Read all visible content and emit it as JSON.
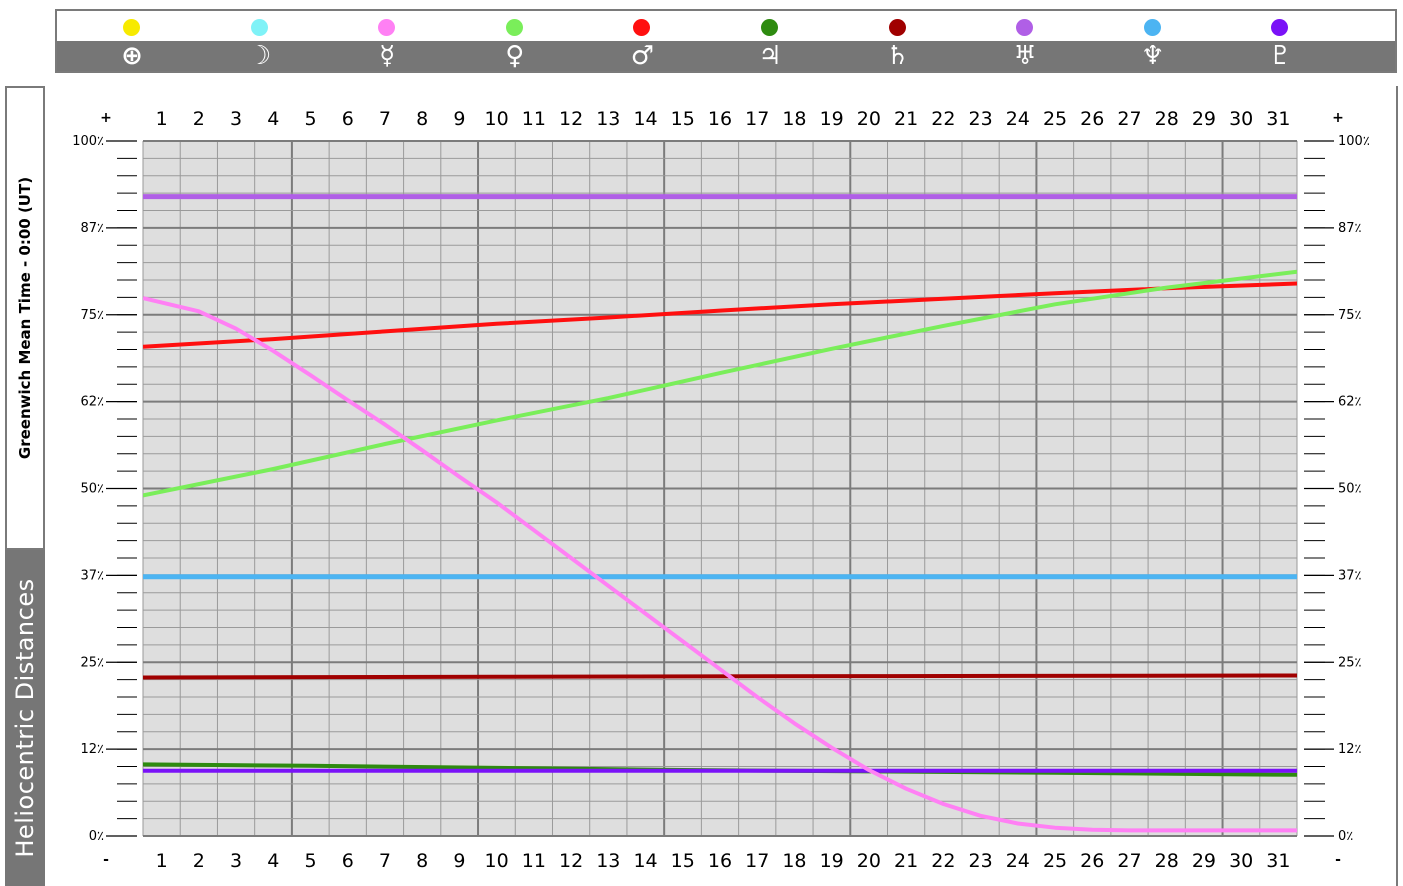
{
  "legend": [
    {
      "symbol": "⊕",
      "color": "#f7ea00",
      "name": "earth-icon"
    },
    {
      "symbol": "☽",
      "color": "#7ff2f7",
      "name": "moon-icon"
    },
    {
      "symbol": "☿",
      "color": "#ff80f4",
      "name": "mercury-icon"
    },
    {
      "symbol": "♀",
      "color": "#7aee5a",
      "name": "venus-icon"
    },
    {
      "symbol": "♂",
      "color": "#ff0f0f",
      "name": "mars-icon"
    },
    {
      "symbol": "♃",
      "color": "#2e8b10",
      "name": "jupiter-icon"
    },
    {
      "symbol": "♄",
      "color": "#a00000",
      "name": "saturn-icon"
    },
    {
      "symbol": "♅",
      "color": "#b05fe6",
      "name": "uranus-icon"
    },
    {
      "symbol": "♆",
      "color": "#4cb4f2",
      "name": "neptune-icon"
    },
    {
      "symbol": "♇",
      "color": "#7a12f7",
      "name": "pluto-icon"
    }
  ],
  "side": {
    "time_label": "Greenwich Mean Time - 0:00 (UT)",
    "title": "Heliocentric Distances"
  },
  "chart_data": {
    "type": "line",
    "x": [
      1,
      2,
      3,
      4,
      5,
      6,
      7,
      8,
      9,
      10,
      11,
      12,
      13,
      14,
      15,
      16,
      17,
      18,
      19,
      20,
      21,
      22,
      23,
      24,
      25,
      26,
      27,
      28,
      29,
      30,
      31
    ],
    "ytick_labels": [
      "100٪",
      "87٪",
      "75٪",
      "62٪",
      "50٪",
      "37٪",
      "25٪",
      "12٪",
      "0٪"
    ],
    "ytick_values": [
      100,
      87.5,
      75,
      62.5,
      50,
      37.5,
      25,
      12.5,
      0
    ],
    "ylim": [
      0,
      100
    ],
    "top_corner_label": "+",
    "bottom_corner_label": "-",
    "grid": true,
    "series": [
      {
        "key": "uranus",
        "color": "#b05fe6",
        "width": 5,
        "values": [
          [
            1,
            92
          ],
          [
            31,
            92
          ]
        ]
      },
      {
        "key": "neptune",
        "color": "#4cb4f2",
        "width": 5,
        "values": [
          [
            1,
            37.3
          ],
          [
            31,
            37.3
          ]
        ]
      },
      {
        "key": "saturn",
        "color": "#a00000",
        "width": 4,
        "values": [
          [
            1,
            22.8
          ],
          [
            10,
            22.9
          ],
          [
            20,
            23.0
          ],
          [
            31,
            23.1
          ]
        ]
      },
      {
        "key": "jupiter",
        "color": "#2e8b10",
        "width": 4,
        "values": [
          [
            1,
            10.3
          ],
          [
            5,
            10.1
          ],
          [
            10,
            9.8
          ],
          [
            15,
            9.5
          ],
          [
            20,
            9.3
          ],
          [
            25,
            9.1
          ],
          [
            31,
            8.8
          ]
        ]
      },
      {
        "key": "pluto",
        "color": "#7a12f7",
        "width": 4,
        "values": [
          [
            1,
            9.4
          ],
          [
            31,
            9.4
          ]
        ]
      },
      {
        "key": "mars",
        "color": "#ff0f0f",
        "width": 4,
        "values": [
          [
            1,
            70.4
          ],
          [
            4,
            71.5
          ],
          [
            7,
            72.6
          ],
          [
            10,
            73.7
          ],
          [
            13,
            74.6
          ],
          [
            16,
            75.6
          ],
          [
            19,
            76.5
          ],
          [
            22,
            77.3
          ],
          [
            25,
            78.1
          ],
          [
            28,
            78.8
          ],
          [
            31,
            79.5
          ]
        ]
      },
      {
        "key": "venus",
        "color": "#7aee5a",
        "width": 4,
        "values": [
          [
            1,
            49
          ],
          [
            4,
            52.8
          ],
          [
            7,
            56.4
          ],
          [
            10,
            59.8
          ],
          [
            13,
            63
          ],
          [
            16,
            66.6
          ],
          [
            19,
            70.1
          ],
          [
            22,
            73.4
          ],
          [
            25,
            76.5
          ],
          [
            28,
            78.9
          ],
          [
            31,
            81.2
          ]
        ]
      },
      {
        "key": "mercury",
        "color": "#ff80f4",
        "width": 4,
        "values": [
          [
            1,
            77.4
          ],
          [
            2,
            75.5
          ],
          [
            3,
            73
          ],
          [
            4,
            69.8
          ],
          [
            5,
            66.3
          ],
          [
            6,
            62.7
          ],
          [
            7,
            59.2
          ],
          [
            8,
            55.5
          ],
          [
            9,
            51.7
          ],
          [
            10,
            48
          ],
          [
            11,
            44
          ],
          [
            12,
            40
          ],
          [
            13,
            36
          ],
          [
            14,
            32
          ],
          [
            15,
            28
          ],
          [
            16,
            24
          ],
          [
            17,
            20
          ],
          [
            18,
            16.2
          ],
          [
            19,
            12.7
          ],
          [
            20,
            9.5
          ],
          [
            21,
            6.8
          ],
          [
            22,
            4.6
          ],
          [
            23,
            2.9
          ],
          [
            24,
            1.8
          ],
          [
            25,
            1.2
          ],
          [
            26,
            0.9
          ],
          [
            27,
            0.8
          ],
          [
            28,
            0.8
          ],
          [
            29,
            0.8
          ],
          [
            30,
            0.8
          ],
          [
            31,
            0.8
          ]
        ]
      }
    ]
  }
}
